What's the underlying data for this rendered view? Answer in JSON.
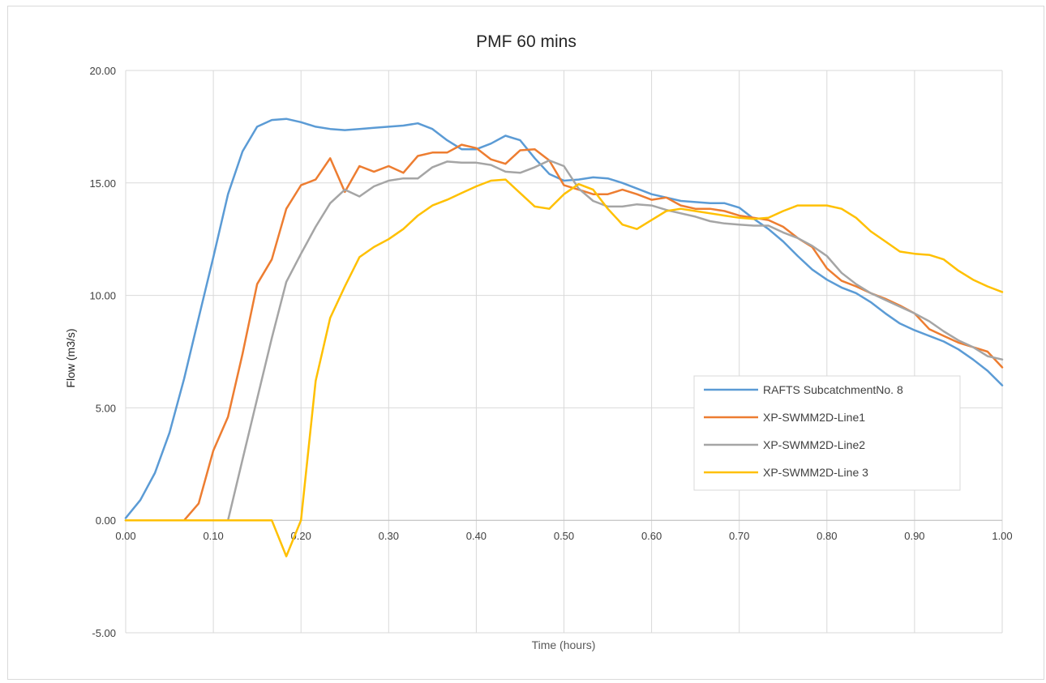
{
  "chart_data": {
    "type": "line",
    "title": "PMF 60 mins",
    "xlabel": "Time (hours)",
    "ylabel": "Flow (m3/s)",
    "xlim": [
      0,
      1
    ],
    "ylim": [
      -5,
      20
    ],
    "x_ticks": [
      "0.00",
      "0.10",
      "0.20",
      "0.30",
      "0.40",
      "0.50",
      "0.60",
      "0.70",
      "0.80",
      "0.90",
      "1.00"
    ],
    "y_ticks": [
      "-5.00",
      "0.00",
      "5.00",
      "10.00",
      "15.00",
      "20.00"
    ],
    "grid": true,
    "legend_position": "right",
    "x": [
      0,
      0.0167,
      0.0333,
      0.05,
      0.0667,
      0.0833,
      0.1,
      0.1167,
      0.1333,
      0.15,
      0.1667,
      0.1833,
      0.2,
      0.2167,
      0.2333,
      0.25,
      0.2667,
      0.2833,
      0.3,
      0.3167,
      0.3333,
      0.35,
      0.3667,
      0.3833,
      0.4,
      0.4167,
      0.4333,
      0.45,
      0.4667,
      0.4833,
      0.5,
      0.5167,
      0.5333,
      0.55,
      0.5667,
      0.5833,
      0.6,
      0.6167,
      0.6333,
      0.65,
      0.6667,
      0.6833,
      0.7,
      0.7167,
      0.7333,
      0.75,
      0.7667,
      0.7833,
      0.8,
      0.8167,
      0.8333,
      0.85,
      0.8667,
      0.8833,
      0.9,
      0.9167,
      0.9333,
      0.95,
      0.9667,
      0.9833,
      1.0
    ],
    "series": [
      {
        "name": "RAFTS SubcatchmentNo. 8",
        "color": "#5b9bd5",
        "values": [
          0.1,
          0.9,
          2.1,
          3.9,
          6.3,
          9.0,
          11.7,
          14.5,
          16.4,
          17.5,
          17.8,
          17.85,
          17.7,
          17.5,
          17.4,
          17.35,
          17.4,
          17.45,
          17.5,
          17.55,
          17.65,
          17.4,
          16.9,
          16.5,
          16.5,
          16.75,
          17.1,
          16.9,
          16.1,
          15.4,
          15.1,
          15.15,
          15.25,
          15.2,
          15.0,
          14.75,
          14.5,
          14.35,
          14.2,
          14.15,
          14.1,
          14.1,
          13.9,
          13.4,
          12.95,
          12.4,
          11.75,
          11.15,
          10.7,
          10.35,
          10.1,
          9.7,
          9.2,
          8.75,
          8.45,
          8.2,
          7.95,
          7.6,
          7.15,
          6.65,
          6.0
        ]
      },
      {
        "name": "XP-SWMM2D-Line1",
        "color": "#ed7d31",
        "values": [
          0,
          0,
          0,
          0,
          0,
          0.75,
          3.1,
          4.6,
          7.4,
          10.5,
          11.6,
          13.85,
          14.9,
          15.15,
          16.1,
          14.6,
          15.75,
          15.5,
          15.75,
          15.45,
          16.2,
          16.35,
          16.35,
          16.7,
          16.55,
          16.05,
          15.85,
          16.45,
          16.5,
          16.0,
          14.9,
          14.7,
          14.5,
          14.5,
          14.7,
          14.5,
          14.25,
          14.35,
          14.0,
          13.85,
          13.85,
          13.75,
          13.55,
          13.45,
          13.35,
          13.05,
          12.55,
          12.15,
          11.2,
          10.65,
          10.4,
          10.1,
          9.85,
          9.55,
          9.2,
          8.5,
          8.2,
          7.9,
          7.7,
          7.5,
          6.8
        ]
      },
      {
        "name": "XP-SWMM2D-Line2",
        "color": "#a5a5a5",
        "values": [
          0,
          0,
          0,
          0,
          0,
          0,
          0,
          0,
          2.7,
          5.4,
          8.1,
          10.6,
          11.85,
          13.05,
          14.1,
          14.7,
          14.4,
          14.85,
          15.1,
          15.2,
          15.2,
          15.7,
          15.95,
          15.9,
          15.9,
          15.8,
          15.5,
          15.45,
          15.7,
          16.0,
          15.75,
          14.75,
          14.2,
          13.95,
          13.95,
          14.05,
          14.0,
          13.8,
          13.65,
          13.5,
          13.3,
          13.2,
          13.15,
          13.1,
          13.1,
          12.8,
          12.55,
          12.2,
          11.75,
          11.0,
          10.5,
          10.1,
          9.8,
          9.5,
          9.2,
          8.85,
          8.4,
          8.0,
          7.7,
          7.3,
          7.15
        ]
      },
      {
        "name": "XP-SWMM2D-Line 3",
        "color": "#ffc000",
        "values": [
          0,
          0,
          0,
          0,
          0,
          0,
          0,
          0,
          0,
          0,
          0,
          -1.6,
          0,
          6.2,
          9.0,
          10.4,
          11.7,
          12.15,
          12.5,
          12.95,
          13.55,
          14.0,
          14.25,
          14.55,
          14.85,
          15.1,
          15.15,
          14.55,
          13.95,
          13.85,
          14.5,
          14.95,
          14.7,
          13.85,
          13.15,
          12.95,
          13.35,
          13.75,
          13.85,
          13.75,
          13.65,
          13.55,
          13.45,
          13.4,
          13.45,
          13.75,
          14.0,
          14.0,
          14.0,
          13.85,
          13.45,
          12.85,
          12.4,
          11.95,
          11.85,
          11.8,
          11.6,
          11.1,
          10.7,
          10.4,
          10.15
        ]
      }
    ]
  }
}
